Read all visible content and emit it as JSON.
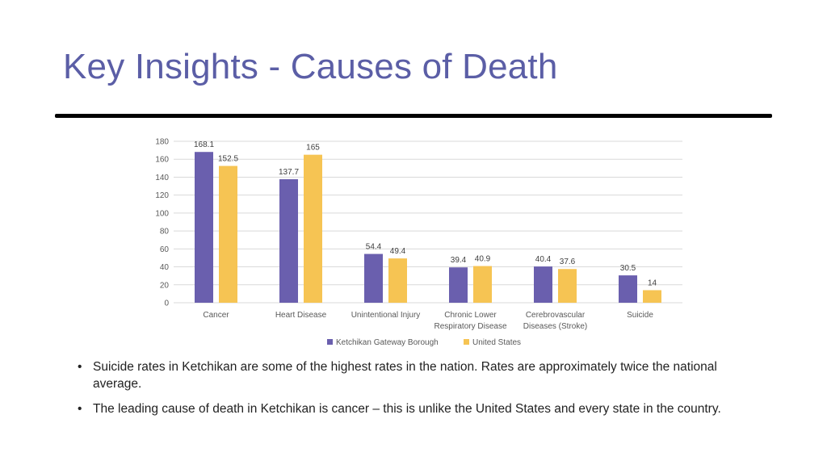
{
  "slide": {
    "title": "Key Insights - Causes of Death"
  },
  "chart_data": {
    "type": "bar",
    "categories": [
      [
        "Cancer"
      ],
      [
        "Heart Disease"
      ],
      [
        "Unintentional Injury"
      ],
      [
        "Chronic Lower",
        "Respiratory Disease"
      ],
      [
        "Cerebrovascular",
        "Diseases (Stroke)"
      ],
      [
        "Suicide"
      ]
    ],
    "series": [
      {
        "name": "Ketchikan Gateway Borough",
        "color": "#6a5fae",
        "values": [
          168.1,
          137.7,
          54.4,
          39.4,
          40.4,
          30.5
        ]
      },
      {
        "name": "United States",
        "color": "#f6c453",
        "values": [
          152.5,
          165,
          49.4,
          40.9,
          37.6,
          14
        ]
      }
    ],
    "ylim": [
      0,
      180
    ],
    "yticks": [
      0,
      20,
      40,
      60,
      80,
      100,
      120,
      140,
      160,
      180
    ],
    "grid": true,
    "legend": "bottom",
    "title": "",
    "xlabel": "",
    "ylabel": ""
  },
  "bullets": [
    "Suicide rates in Ketchikan are some of the highest rates in the nation. Rates are approximately twice the national average.",
    "The leading cause of death in Ketchikan is cancer – this is unlike the United States and every state in the country."
  ],
  "bullet_char": "•"
}
